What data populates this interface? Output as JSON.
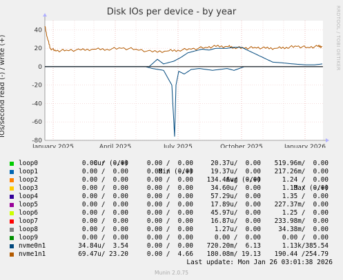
{
  "brand": "RRDTOOL / TOBI OETIKER",
  "footer": "Munin 2.0.75",
  "last_update": "Last update: Mon Jan 26 03:01:38 2026",
  "legend_header": {
    "cur": "Cur (-/+)",
    "min": "Min (-/+)",
    "avg": "Avg (-/+)",
    "max": "Max (-/+)"
  },
  "legend_rows": [
    {
      "name": "loop0",
      "color": "#00cc00",
      "cur": "0.00 /  0.00",
      "min": "0.00 /  0.00",
      "avg": "20.37u/  0.00",
      "max": "519.96m/  0.00"
    },
    {
      "name": "loop1",
      "color": "#0066b3",
      "cur": "0.00 /  0.00",
      "min": "0.00 /  0.00",
      "avg": "19.37u/  0.00",
      "max": "217.26m/  0.00"
    },
    {
      "name": "loop2",
      "color": "#ff8000",
      "cur": "0.00 /  0.00",
      "min": "0.00 /  0.00",
      "avg": "134.46u/  0.00",
      "max": "1.24 /  0.00"
    },
    {
      "name": "loop3",
      "color": "#ffcc00",
      "cur": "0.00 /  0.00",
      "min": "0.00 /  0.00",
      "avg": "34.60u/  0.00",
      "max": "1.13 /  0.00"
    },
    {
      "name": "loop4",
      "color": "#330099",
      "cur": "0.00 /  0.00",
      "min": "0.00 /  0.00",
      "avg": "57.29u/  0.00",
      "max": "1.35 /  0.00"
    },
    {
      "name": "loop5",
      "color": "#990099",
      "cur": "0.00 /  0.00",
      "min": "0.00 /  0.00",
      "avg": "17.89u/  0.00",
      "max": "227.37m/  0.00"
    },
    {
      "name": "loop6",
      "color": "#ccff00",
      "cur": "0.00 /  0.00",
      "min": "0.00 /  0.00",
      "avg": "45.97u/  0.00",
      "max": "1.25 /  0.00"
    },
    {
      "name": "loop7",
      "color": "#ff0000",
      "cur": "0.00 /  0.00",
      "min": "0.00 /  0.00",
      "avg": "16.87u/  0.00",
      "max": "233.98m/  0.00"
    },
    {
      "name": "loop8",
      "color": "#808080",
      "cur": "0.00 /  0.00",
      "min": "0.00 /  0.00",
      "avg": "1.27u/  0.00",
      "max": "34.38m/  0.00"
    },
    {
      "name": "loop9",
      "color": "#008f00",
      "cur": "0.00 /  0.00",
      "min": "0.00 /  0.00",
      "avg": "0.00 /  0.00",
      "max": "0.00 /  0.00"
    },
    {
      "name": "nvme0n1",
      "color": "#00487d",
      "cur": "34.84u/  3.54",
      "min": "0.00 /  0.00",
      "avg": "720.20m/  6.13",
      "max": "1.13k/385.54"
    },
    {
      "name": "nvme1n1",
      "color": "#b35a00",
      "cur": "69.47u/ 23.20",
      "min": "0.00 /  4.66",
      "avg": "180.08m/ 19.13",
      "max": "190.44 /254.79"
    }
  ],
  "chart_data": {
    "type": "line",
    "title": "Disk IOs per device - by year",
    "ylabel": "IOs/second read (-) / write (+)",
    "xlabel": "",
    "ylim": [
      -80,
      50
    ],
    "xlim": [
      "2024-12-20",
      "2026-01-27"
    ],
    "grid": true,
    "y_ticks": [
      "40",
      "20",
      "0",
      "-20",
      "-40",
      "-60",
      "-80"
    ],
    "x_ticks": [
      {
        "date": "2025-01-01",
        "label": "January 2025"
      },
      {
        "date": "2025-04-01",
        "label": "April 2025"
      },
      {
        "date": "2025-07-01",
        "label": "July 2025"
      },
      {
        "date": "2025-10-01",
        "label": "October 2025"
      },
      {
        "date": "2026-01-01",
        "label": "January 2026"
      }
    ],
    "series": [
      {
        "name": "nvme1n1",
        "color": "#b35a00",
        "x": [
          "2024-12-20",
          "2024-12-24",
          "2024-12-28",
          "2025-01-05",
          "2025-01-20",
          "2025-02-10",
          "2025-03-01",
          "2025-03-20",
          "2025-04-10",
          "2025-05-01",
          "2025-05-25",
          "2025-06-15",
          "2025-07-01",
          "2025-07-20",
          "2025-08-10",
          "2025-08-25",
          "2025-09-10",
          "2025-09-20",
          "2025-10-05",
          "2025-10-20",
          "2025-11-05",
          "2025-11-20",
          "2025-12-05",
          "2025-12-20",
          "2026-01-05",
          "2026-01-20",
          "2026-01-26"
        ],
        "values": [
          44,
          30,
          20,
          17,
          18,
          18,
          19,
          19,
          20,
          19,
          16,
          17,
          18,
          19,
          21,
          22,
          22,
          21,
          20,
          21,
          20,
          20,
          21,
          22,
          21,
          22,
          22
        ]
      },
      {
        "name": "nvme0n1",
        "color": "#00487d",
        "x": [
          "2024-12-20",
          "2025-05-20",
          "2025-06-01",
          "2025-06-10",
          "2025-06-25",
          "2025-07-05",
          "2025-07-15",
          "2025-07-25",
          "2025-08-05",
          "2025-08-15",
          "2025-08-25",
          "2025-09-10",
          "2025-09-20",
          "2025-10-01",
          "2025-10-15",
          "2025-11-01",
          "2025-11-15",
          "2025-12-01",
          "2025-12-15",
          "2026-01-01",
          "2026-01-15",
          "2026-01-26"
        ],
        "values": [
          0,
          0,
          8,
          3,
          6,
          10,
          15,
          17,
          19,
          18,
          20,
          20,
          21,
          21,
          16,
          10,
          5,
          4,
          3,
          2,
          2,
          3
        ]
      },
      {
        "name": "nvme0n1 read",
        "color": "#00487d",
        "x": [
          "2024-12-20",
          "2025-05-15",
          "2025-05-25",
          "2025-06-10",
          "2025-06-22",
          "2025-06-26",
          "2025-06-28",
          "2025-07-02",
          "2025-07-10",
          "2025-07-20",
          "2025-08-01",
          "2025-08-20",
          "2025-09-10",
          "2025-09-20",
          "2025-10-05",
          "2026-01-26"
        ],
        "values": [
          0,
          0,
          -2,
          -4,
          -20,
          -76,
          -20,
          -5,
          -8,
          -3,
          -2,
          -4,
          -2,
          -4,
          0,
          0
        ]
      }
    ]
  }
}
